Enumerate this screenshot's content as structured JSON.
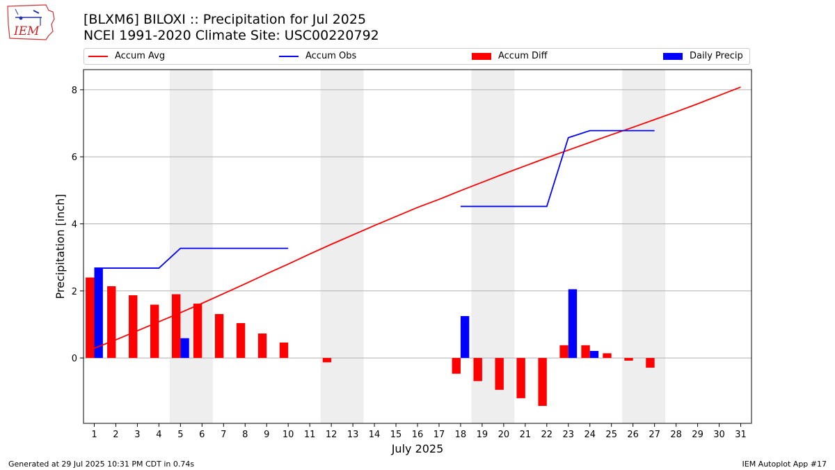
{
  "header": {
    "title_line1": "[BLXM6] BILOXI :: Precipitation for Jul 2025",
    "title_line2": "NCEI 1991-2020 Climate Site: USC00220792"
  },
  "logo": {
    "text": "IEM"
  },
  "legend": {
    "items": [
      {
        "label": "Accum Avg",
        "color": "#ff0000",
        "kind": "line"
      },
      {
        "label": "Accum Obs",
        "color": "#0000ff",
        "kind": "line"
      },
      {
        "label": "Accum Diff",
        "color": "#ff0000",
        "kind": "box"
      },
      {
        "label": "Daily Precip",
        "color": "#0000ff",
        "kind": "box"
      }
    ]
  },
  "footer": {
    "left": "Generated at 29 Jul 2025 10:31 PM CDT in 0.74s",
    "right": "IEM Autoplot App #17"
  },
  "chart_data": {
    "type": "bar",
    "xlabel": "July 2025",
    "ylabel": "Precipitation [inch]",
    "ylim": [
      -1.95,
      8.6
    ],
    "yticks": [
      0,
      2,
      4,
      6,
      8
    ],
    "xlim": [
      0.5,
      31.5
    ],
    "grid": "horizontal",
    "legend_position": "top",
    "categories": [
      "1",
      "2",
      "3",
      "4",
      "5",
      "6",
      "7",
      "8",
      "9",
      "10",
      "11",
      "12",
      "13",
      "14",
      "15",
      "16",
      "17",
      "18",
      "19",
      "20",
      "21",
      "22",
      "23",
      "24",
      "25",
      "26",
      "27",
      "28",
      "29",
      "30",
      "31"
    ],
    "weekend_shading": [
      [
        5,
        6
      ],
      [
        12,
        13
      ],
      [
        19,
        20
      ],
      [
        26,
        27
      ]
    ],
    "series": [
      {
        "name": "Accum Avg",
        "type": "line",
        "color": "#ff0000",
        "x": [
          1,
          2,
          3,
          4,
          5,
          6,
          7,
          8,
          9,
          10,
          11,
          12,
          13,
          14,
          15,
          16,
          17,
          18,
          19,
          20,
          21,
          22,
          23,
          24,
          25,
          26,
          27,
          28,
          29,
          30,
          31
        ],
        "values": [
          0.29,
          0.54,
          0.81,
          1.08,
          1.35,
          1.63,
          1.92,
          2.21,
          2.51,
          2.8,
          3.1,
          3.39,
          3.67,
          3.95,
          4.22,
          4.49,
          4.73,
          4.99,
          5.24,
          5.49,
          5.73,
          5.97,
          6.2,
          6.43,
          6.66,
          6.88,
          7.11,
          7.34,
          7.58,
          7.83,
          8.08
        ]
      },
      {
        "name": "Accum Obs",
        "type": "line",
        "color": "#0000ff",
        "segments": [
          {
            "x": [
              1,
              2,
              3,
              4,
              5,
              6,
              7,
              8,
              9,
              10
            ],
            "values": [
              2.68,
              2.68,
              2.68,
              2.68,
              3.27,
              3.27,
              3.27,
              3.27,
              3.27,
              3.27
            ]
          },
          {
            "x": [
              18,
              19,
              20,
              21,
              22,
              23,
              24,
              25,
              26,
              27
            ],
            "values": [
              4.52,
              4.52,
              4.52,
              4.52,
              4.52,
              6.57,
              6.78,
              6.78,
              6.78,
              6.78
            ]
          }
        ]
      },
      {
        "name": "Accum Diff",
        "type": "bar",
        "color": "#ff0000",
        "x": [
          1,
          2,
          3,
          4,
          5,
          6,
          7,
          8,
          9,
          10,
          12,
          18,
          19,
          20,
          21,
          22,
          23,
          24,
          25,
          26,
          27
        ],
        "values": [
          2.4,
          2.14,
          1.87,
          1.59,
          1.9,
          1.62,
          1.31,
          1.04,
          0.73,
          0.46,
          -0.13,
          -0.47,
          -0.69,
          -0.95,
          -1.2,
          -1.43,
          0.38,
          0.38,
          0.14,
          -0.08,
          -0.29
        ]
      },
      {
        "name": "Daily Precip",
        "type": "bar",
        "color": "#0000ff",
        "x": [
          1,
          5,
          18,
          23,
          24
        ],
        "values": [
          2.69,
          0.59,
          1.25,
          2.05,
          0.21
        ]
      }
    ]
  }
}
